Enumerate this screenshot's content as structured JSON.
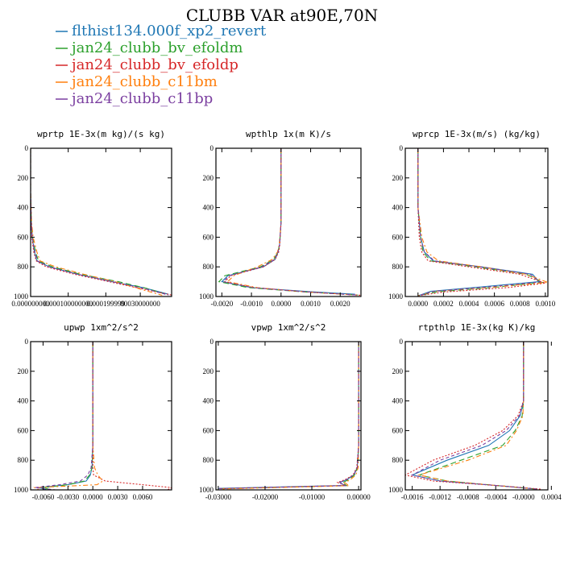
{
  "figure": {
    "title": "CLUBB VAR at90E,70N"
  },
  "colors": {
    "s1": "#1f77b4",
    "s2": "#2ca02c",
    "s3": "#d62728",
    "s4": "#ff7f0e",
    "s5": "#7b3fa0"
  },
  "legend": [
    {
      "name": "flthist134.000f_xp2_revert",
      "color_key": "s1",
      "dash": "solid"
    },
    {
      "name": "jan24_clubb_bv_efoldm",
      "color_key": "s2",
      "dash": "longdash"
    },
    {
      "name": "jan24_clubb_bv_efoldp",
      "color_key": "s3",
      "dash": "dot"
    },
    {
      "name": "jan24_clubb_c11bm",
      "color_key": "s4",
      "dash": "dashdot"
    },
    {
      "name": "jan24_clubb_c11bp",
      "color_key": "s5",
      "dash": "dash"
    }
  ],
  "chart_data": [
    {
      "type": "line",
      "title": "wprtp  1E-3x(m kg)/(s kg)",
      "ylim": [
        1000,
        0
      ],
      "yticks": [
        "0",
        "200",
        "400",
        "600",
        "800",
        "1000"
      ],
      "xlim": [
        0,
        4.5e-06
      ],
      "xticks": [
        {
          "v": 0.0,
          "label": "0.000000000"
        },
        {
          "v": 1.2e-06,
          "label": "0.000100000000"
        },
        {
          "v": 2.4e-06,
          "label": "0.000199999"
        },
        {
          "v": 3.5e-06,
          "label": "00030000000"
        }
      ],
      "series": [
        {
          "x": [
            0.0,
            0.0,
            2e-08,
            5e-08,
            1.2e-07,
            2e-07,
            6e-07,
            1.5e-06,
            2.6e-06,
            3.6e-06,
            4.4e-06
          ],
          "y": [
            0,
            300,
            500,
            600,
            700,
            760,
            800,
            850,
            900,
            940,
            985
          ]
        },
        {
          "x": [
            0.0,
            0.0,
            2e-08,
            6e-08,
            1.6e-07,
            2.5e-07,
            7e-07,
            1.6e-06,
            2.8e-06,
            3.7e-06,
            4.4e-06
          ],
          "y": [
            0,
            300,
            500,
            600,
            700,
            760,
            800,
            850,
            900,
            945,
            990
          ]
        },
        {
          "x": [
            0.0,
            0.0,
            2e-08,
            4e-08,
            1e-07,
            1.8e-07,
            5e-07,
            1.4e-06,
            2.5e-06,
            3.6e-06,
            4.5e-06
          ],
          "y": [
            0,
            300,
            500,
            600,
            700,
            760,
            800,
            850,
            900,
            950,
            990
          ]
        },
        {
          "x": [
            0.0,
            0.0,
            3e-08,
            8e-08,
            2e-07,
            3e-07,
            8e-07,
            1.7e-06,
            2.7e-06,
            3.5e-06,
            4.2e-06
          ],
          "y": [
            0,
            300,
            500,
            600,
            700,
            760,
            800,
            850,
            900,
            950,
            992
          ]
        },
        {
          "x": [
            0.0,
            0.0,
            2e-08,
            5e-08,
            1.4e-07,
            2.2e-07,
            6e-07,
            1.5e-06,
            2.6e-06,
            3.6e-06,
            4.4e-06
          ],
          "y": [
            0,
            300,
            500,
            600,
            700,
            760,
            800,
            850,
            900,
            945,
            990
          ]
        }
      ]
    },
    {
      "type": "line",
      "title": "wpthlp  1x(m K)/s",
      "ylim": [
        1000,
        0
      ],
      "yticks": [
        "0",
        "200",
        "400",
        "600",
        "800",
        "1000"
      ],
      "xlim": [
        -0.0022,
        0.0027
      ],
      "xticks": [
        {
          "v": -0.002,
          "label": "-0.0020"
        },
        {
          "v": -0.001,
          "label": "-0.0010"
        },
        {
          "v": 0.0,
          "label": "0.0000"
        },
        {
          "v": 0.001,
          "label": "0.0010"
        },
        {
          "v": 0.002,
          "label": "0.0020"
        }
      ],
      "series": [
        {
          "x": [
            0.0,
            0.0,
            -5e-05,
            -0.0001,
            -0.0002,
            -0.0006,
            -0.0018,
            -0.002,
            -0.001,
            0.0008,
            0.0025
          ],
          "y": [
            0,
            500,
            650,
            700,
            750,
            800,
            860,
            900,
            940,
            965,
            985
          ]
        },
        {
          "x": [
            0.0,
            0.0,
            -5e-05,
            -0.0001,
            -0.00025,
            -0.0007,
            -0.0019,
            -0.0021,
            -0.0011,
            0.0007,
            0.0026
          ],
          "y": [
            0,
            500,
            650,
            700,
            750,
            800,
            860,
            900,
            940,
            968,
            990
          ]
        },
        {
          "x": [
            0.0,
            0.0,
            -4e-05,
            -8e-05,
            -0.0002,
            -0.0006,
            -0.0017,
            -0.0019,
            -0.0009,
            0.0009,
            0.0027
          ],
          "y": [
            0,
            500,
            650,
            700,
            750,
            800,
            860,
            900,
            940,
            970,
            992
          ]
        },
        {
          "x": [
            0.0,
            0.0,
            -6e-05,
            -0.00012,
            -0.0003,
            -0.0008,
            -0.0016,
            -0.0018,
            -0.0008,
            0.0006,
            0.0024
          ],
          "y": [
            0,
            500,
            650,
            700,
            750,
            800,
            860,
            900,
            940,
            965,
            988
          ]
        },
        {
          "x": [
            0.0,
            0.0,
            -5e-05,
            -0.0001,
            -0.00022,
            -0.00065,
            -0.00175,
            -0.00195,
            -0.00095,
            0.00075,
            0.00255
          ],
          "y": [
            0,
            500,
            650,
            700,
            750,
            800,
            860,
            900,
            940,
            967,
            990
          ]
        }
      ]
    },
    {
      "type": "line",
      "title": "wprcp  1E-3x(m/s) (kg/kg)",
      "ylim": [
        1000,
        0
      ],
      "yticks": [
        "0",
        "200",
        "400",
        "600",
        "800",
        "1000"
      ],
      "xlim": [
        -0.0001,
        0.00102
      ],
      "xticks": [
        {
          "v": 0.0,
          "label": "0.0000"
        },
        {
          "v": 0.0002,
          "label": "0.0002"
        },
        {
          "v": 0.0004,
          "label": "0.0004"
        },
        {
          "v": 0.0006,
          "label": "0.0006"
        },
        {
          "v": 0.0008,
          "label": "0.0008"
        },
        {
          "v": 0.001,
          "label": "0.0010"
        }
      ],
      "series": [
        {
          "x": [
            0.0,
            0.0,
            2e-05,
            5e-05,
            0.00012,
            0.0005,
            0.0009,
            0.00095,
            0.0005,
            0.0001,
            0.0
          ],
          "y": [
            0,
            400,
            600,
            700,
            760,
            800,
            850,
            900,
            935,
            965,
            995
          ]
        },
        {
          "x": [
            0.0,
            0.0,
            2e-05,
            4e-05,
            0.0001,
            0.00045,
            0.00085,
            0.00098,
            0.0006,
            0.00015,
            0.0
          ],
          "y": [
            0,
            400,
            600,
            700,
            760,
            800,
            850,
            905,
            938,
            968,
            995
          ]
        },
        {
          "x": [
            0.0,
            0.0,
            1e-05,
            3e-05,
            8e-05,
            0.0004,
            0.0008,
            0.001,
            0.0007,
            0.0002,
            0.0
          ],
          "y": [
            0,
            400,
            600,
            700,
            760,
            800,
            850,
            910,
            940,
            970,
            995
          ]
        },
        {
          "x": [
            0.0,
            0.0,
            3e-05,
            7e-05,
            0.00016,
            0.0005,
            0.00085,
            0.00102,
            0.0006,
            0.00012,
            0.0
          ],
          "y": [
            0,
            400,
            600,
            700,
            760,
            800,
            850,
            905,
            936,
            966,
            995
          ]
        },
        {
          "x": [
            0.0,
            0.0,
            2e-05,
            5e-05,
            0.00013,
            0.00048,
            0.00088,
            0.00096,
            0.00055,
            0.00012,
            0.0
          ],
          "y": [
            0,
            400,
            600,
            700,
            760,
            800,
            850,
            902,
            936,
            966,
            995
          ]
        }
      ]
    },
    {
      "type": "line",
      "title": "upwp  1xm^2/s^2",
      "ylim": [
        1000,
        0
      ],
      "yticks": [
        "0",
        "200",
        "400",
        "600",
        "800",
        "1000"
      ],
      "xlim": [
        -0.0075,
        0.0095
      ],
      "xticks": [
        {
          "v": -0.006,
          "label": "-0.0060"
        },
        {
          "v": -0.003,
          "label": "-0.0030"
        },
        {
          "v": 0.0,
          "label": "0.0000"
        },
        {
          "v": 0.003,
          "label": "0.0030"
        },
        {
          "v": 0.006,
          "label": "0.0060"
        }
      ],
      "series": [
        {
          "x": [
            0.0,
            0.0,
            -0.0001,
            -0.0003,
            -0.0008,
            -0.003,
            -0.0065,
            -0.0055
          ],
          "y": [
            0,
            700,
            850,
            900,
            940,
            965,
            985,
            1000
          ]
        },
        {
          "x": [
            0.0,
            0.0,
            -0.0001,
            -0.0004,
            -0.001,
            -0.003,
            -0.006,
            -0.005
          ],
          "y": [
            0,
            700,
            850,
            900,
            940,
            965,
            985,
            1000
          ]
        },
        {
          "x": [
            0.0,
            0.0,
            0.0,
            0.0001,
            0.0015,
            0.006,
            0.0095,
            0.009
          ],
          "y": [
            0,
            700,
            850,
            900,
            940,
            965,
            985,
            1000
          ]
        },
        {
          "x": [
            0.0,
            0.0,
            0.0002,
            0.0006,
            0.0012,
            0.0005,
            -0.007,
            -0.0065
          ],
          "y": [
            0,
            700,
            850,
            900,
            940,
            965,
            985,
            1000
          ]
        },
        {
          "x": [
            0.0,
            0.0,
            -0.0002,
            -0.0006,
            -0.0015,
            -0.004,
            -0.007,
            -0.0045
          ],
          "y": [
            0,
            700,
            850,
            900,
            940,
            965,
            985,
            1000
          ]
        }
      ]
    },
    {
      "type": "line",
      "title": "vpwp  1xm^2/s^2",
      "ylim": [
        1000,
        0
      ],
      "yticks": [
        "0",
        "200",
        "400",
        "600",
        "800",
        "1000"
      ],
      "xlim": [
        -0.0305,
        0.0005
      ],
      "xticks": [
        {
          "v": -0.03,
          "label": "-0.03000"
        },
        {
          "v": -0.02,
          "label": "-0.02000"
        },
        {
          "v": -0.01,
          "label": "-0.01000"
        },
        {
          "v": 0.0,
          "label": "0.00000"
        }
      ],
      "series": [
        {
          "x": [
            0.0,
            0.0,
            -0.0003,
            -0.001,
            -0.0025,
            -0.004,
            -0.003,
            -0.03
          ],
          "y": [
            0,
            700,
            850,
            900,
            930,
            950,
            970,
            990
          ]
        },
        {
          "x": [
            0.0,
            0.0,
            -0.0002,
            -0.0009,
            -0.0022,
            -0.0035,
            -0.0025,
            -0.03
          ],
          "y": [
            0,
            700,
            850,
            900,
            932,
            952,
            972,
            992
          ]
        },
        {
          "x": [
            0.0,
            0.0,
            -0.0004,
            -0.0012,
            -0.0028,
            -0.0045,
            -0.0028,
            -0.03
          ],
          "y": [
            0,
            700,
            850,
            900,
            930,
            950,
            970,
            993
          ]
        },
        {
          "x": [
            0.0,
            0.0,
            -0.0001,
            -0.0006,
            -0.0018,
            -0.003,
            -0.002,
            -0.0295
          ],
          "y": [
            0,
            700,
            850,
            900,
            932,
            952,
            972,
            994
          ]
        },
        {
          "x": [
            0.0,
            0.0,
            -0.0003,
            -0.0011,
            -0.0026,
            -0.0042,
            -0.0027,
            -0.03
          ],
          "y": [
            0,
            700,
            850,
            900,
            931,
            951,
            971,
            991
          ]
        }
      ]
    },
    {
      "type": "line",
      "title": "rtpthlp  1E-3x(kg K)/kg",
      "ylim": [
        1000,
        0
      ],
      "yticks": [
        "0",
        "200",
        "400",
        "600",
        "800",
        "1000"
      ],
      "xlim": [
        -0.0017,
        0.00035
      ],
      "xticks": [
        {
          "v": -0.0016,
          "label": "-0.0016"
        },
        {
          "v": -0.0012,
          "label": "-0.0012"
        },
        {
          "v": -0.0008,
          "label": "-0.0008"
        },
        {
          "v": -0.0004,
          "label": "-0.0004"
        },
        {
          "v": 0.0,
          "label": "-0.0000"
        },
        {
          "v": 0.0004,
          "label": "0.0004"
        }
      ],
      "series": [
        {
          "x": [
            0.0,
            0.0,
            -5e-05,
            -0.0002,
            -0.0005,
            -0.0011,
            -0.0016,
            -0.0012,
            -0.0004,
            0.0002
          ],
          "y": [
            0,
            400,
            500,
            600,
            700,
            800,
            900,
            940,
            970,
            995
          ]
        },
        {
          "x": [
            0.0,
            0.0,
            -2e-05,
            -0.00012,
            -0.0003,
            -0.0009,
            -0.0015,
            -0.0011,
            -0.0004,
            0.0002
          ],
          "y": [
            0,
            400,
            500,
            600,
            700,
            800,
            900,
            940,
            970,
            995
          ]
        },
        {
          "x": [
            0.0,
            0.0,
            -8e-05,
            -0.0003,
            -0.0007,
            -0.0013,
            -0.0017,
            -0.0013,
            -0.0004,
            0.00025
          ],
          "y": [
            0,
            400,
            500,
            600,
            700,
            800,
            900,
            940,
            970,
            995
          ]
        },
        {
          "x": [
            0.0,
            0.0,
            -1e-05,
            -0.0001,
            -0.00025,
            -0.0008,
            -0.0015,
            -0.0011,
            -0.0004,
            0.0002
          ],
          "y": [
            0,
            400,
            500,
            600,
            700,
            800,
            900,
            940,
            970,
            995
          ]
        },
        {
          "x": [
            0.0,
            0.0,
            -6e-05,
            -0.00025,
            -0.0006,
            -0.0012,
            -0.0016,
            -0.0012,
            -0.0004,
            0.0002
          ],
          "y": [
            0,
            400,
            500,
            600,
            700,
            800,
            900,
            940,
            970,
            995
          ]
        }
      ]
    }
  ]
}
